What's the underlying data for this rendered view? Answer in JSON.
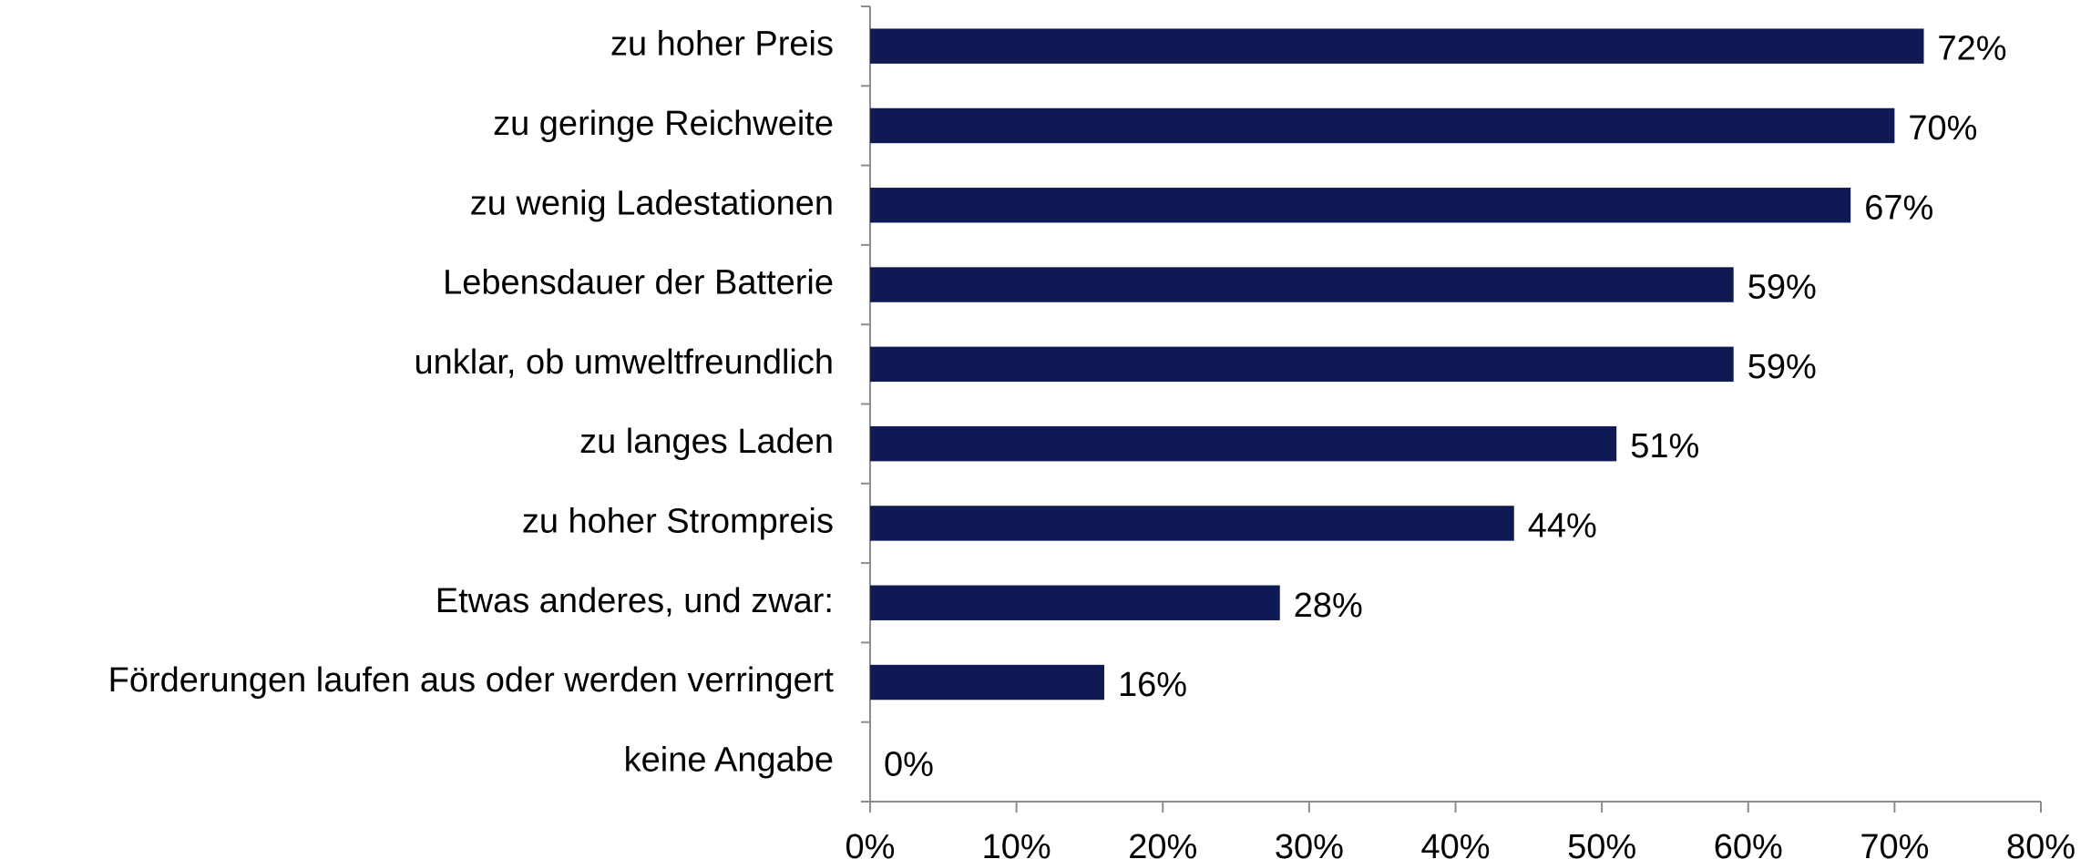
{
  "chart_data": {
    "type": "barh",
    "categories": [
      "zu hoher Preis",
      "zu geringe Reichweite",
      "zu wenig Ladestationen",
      "Lebensdauer der Batterie",
      "unklar, ob umweltfreundlich",
      "zu langes Laden",
      "zu hoher Strompreis",
      "Etwas anderes, und zwar:",
      "Förderungen laufen aus oder werden verringert",
      "keine Angabe"
    ],
    "values": [
      72,
      70,
      67,
      59,
      59,
      51,
      44,
      28,
      16,
      0
    ],
    "value_labels": [
      "72%",
      "70%",
      "67%",
      "59%",
      "59%",
      "51%",
      "44%",
      "28%",
      "16%",
      "0%"
    ],
    "color": "#0f1a55",
    "xlim": [
      0,
      80
    ],
    "xticks": [
      {
        "value": 0,
        "label": "0%"
      },
      {
        "value": 10,
        "label": "10%"
      },
      {
        "value": 20,
        "label": "20%"
      },
      {
        "value": 30,
        "label": "30%"
      },
      {
        "value": 40,
        "label": "40%"
      },
      {
        "value": 50,
        "label": "50%"
      },
      {
        "value": 60,
        "label": "60%"
      },
      {
        "value": 70,
        "label": "70%"
      },
      {
        "value": 80,
        "label": "80%"
      }
    ],
    "grid": false
  }
}
